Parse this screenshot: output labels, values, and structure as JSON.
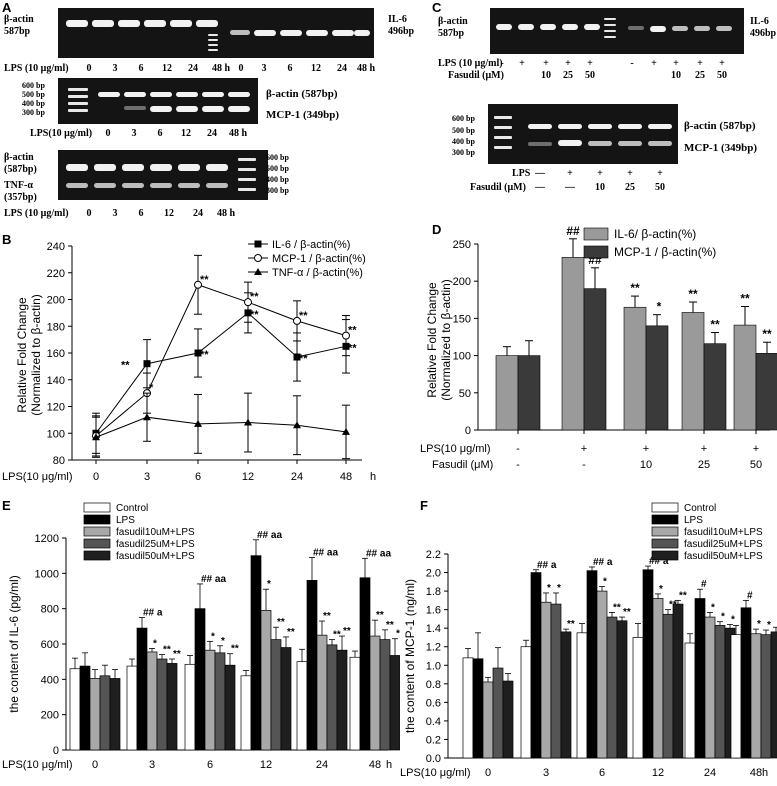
{
  "panel_labels": {
    "A": "A",
    "B": "B",
    "C": "C",
    "D": "D",
    "E": "E",
    "F": "F"
  },
  "gels": {
    "a1": {
      "left_label": "β-actin\n587bp",
      "right_label": "IL-6\n496bp",
      "row_prefix": "LPS (10 μg/ml)",
      "lanes": [
        "0",
        "3",
        "6",
        "12",
        "24",
        "48 h",
        "0",
        "3",
        "6",
        "12",
        "24",
        "48 h"
      ]
    },
    "a2": {
      "ladder": [
        "600 bp",
        "500 bp",
        "400 bp",
        "300 bp"
      ],
      "right_top": "β-actin (587bp)",
      "right_bottom": "MCP-1 (349bp)",
      "row_prefix": "LPS(10 μg/ml)",
      "lanes": [
        "0",
        "3",
        "6",
        "12",
        "24",
        "48 h"
      ]
    },
    "a3": {
      "left_top": "β-actin\n(587bp)",
      "left_bottom": "TNF-α\n(357bp)",
      "ladder": [
        "600 bp",
        "500 bp",
        "400 bp",
        "300 bp"
      ],
      "row_prefix": "LPS (10 μg/ml)",
      "lanes": [
        "0",
        "3",
        "6",
        "12",
        "24",
        "48 h"
      ]
    },
    "c1": {
      "left_label": "β-actin\n587bp",
      "right_label": "IL-6\n496bp",
      "row1_prefix": "LPS (10 μg/ml)",
      "row1": [
        "-",
        "+",
        "+",
        "+",
        "+",
        "",
        "-",
        "+",
        "+",
        "+",
        "+"
      ],
      "row2_prefix": "Fasudil (μM)",
      "row2": [
        "",
        "",
        "10",
        "25",
        "50",
        "",
        "",
        "",
        "10",
        "25",
        "50"
      ]
    },
    "c2": {
      "ladder": [
        "600 bp",
        "500 bp",
        "400 bp",
        "300 bp"
      ],
      "right_top": "β-actin (587bp)",
      "right_bottom": "MCP-1 (349bp)",
      "row1_prefix": "LPS",
      "row1": [
        "—",
        "+",
        "+",
        "+",
        "+"
      ],
      "row2_prefix": "Fasudil (μM)",
      "row2": [
        "—",
        "—",
        "10",
        "25",
        "50"
      ]
    }
  },
  "chart_data": [
    {
      "id": "B",
      "type": "line",
      "xlabel": "LPS(10 μg/ml)",
      "x_unit": "h",
      "categories": [
        "0",
        "3",
        "6",
        "12",
        "24",
        "48"
      ],
      "ylabel": "Relative Fold Change\n(Normalized to β-actin)",
      "ylim": [
        80,
        240
      ],
      "yticks": [
        80,
        100,
        120,
        140,
        160,
        180,
        200,
        220,
        240
      ],
      "legend_position": "top-right",
      "series": [
        {
          "name": "IL-6 / β-actin(%)",
          "marker": "filled-square",
          "values": [
            100,
            152,
            160,
            190,
            157,
            165
          ],
          "errors": [
            15,
            18,
            18,
            15,
            18,
            20
          ],
          "sig": [
            "",
            "**",
            "**",
            "**",
            "**",
            "**"
          ]
        },
        {
          "name": "MCP-1 / β-actin(%)",
          "marker": "open-circle",
          "values": [
            98,
            130,
            211,
            198,
            184,
            173
          ],
          "errors": [
            15,
            15,
            22,
            15,
            15,
            15
          ],
          "sig": [
            "",
            "*",
            "**",
            "**",
            "**",
            "**"
          ]
        },
        {
          "name": "TNF-α / β-actin(%)",
          "marker": "filled-triangle",
          "values": [
            97,
            112,
            107,
            108,
            106,
            101
          ],
          "errors": [
            15,
            18,
            22,
            22,
            22,
            20
          ],
          "sig": [
            "",
            "",
            "",
            "",
            "",
            ""
          ]
        }
      ]
    },
    {
      "id": "D",
      "type": "bar",
      "ylabel": "Relative Fold Change\n(Normalized to β-actin)",
      "ylim": [
        0,
        250
      ],
      "yticks": [
        0,
        50,
        100,
        150,
        200,
        250
      ],
      "legend_position": "top-right",
      "rows": [
        {
          "label": "LPS(10 μg/ml)",
          "values": [
            "-",
            "+",
            "+",
            "+",
            "+"
          ]
        },
        {
          "label": "Fasudil (μM)",
          "values": [
            "-",
            "-",
            "10",
            "25",
            "50"
          ]
        }
      ],
      "series": [
        {
          "name": "IL-6/ β-actin(%)",
          "color": "#9a9a9a",
          "values": [
            100,
            232,
            165,
            158,
            141
          ],
          "errors": [
            12,
            25,
            15,
            14,
            25
          ],
          "sig": [
            "",
            "##",
            "**",
            "**",
            "**"
          ]
        },
        {
          "name": "MCP-1 / β-actin(%)",
          "color": "#3a3a3a",
          "values": [
            100,
            190,
            140,
            116,
            103
          ],
          "errors": [
            20,
            28,
            15,
            15,
            15
          ],
          "sig": [
            "",
            "##",
            "*",
            "**",
            "**"
          ]
        }
      ]
    },
    {
      "id": "E",
      "type": "bar",
      "ylabel": "the content of IL-6 (pg/ml)",
      "xlabel": "LPS(10 μg/ml)",
      "x_unit": "h",
      "categories": [
        "0",
        "3",
        "6",
        "12",
        "24",
        "48"
      ],
      "ylim": [
        0,
        1200
      ],
      "yticks": [
        0,
        200,
        400,
        600,
        800,
        1000,
        1200
      ],
      "legend_position": "top-left",
      "series": [
        {
          "name": "Control",
          "color": "#ffffff",
          "values": [
            460,
            475,
            485,
            420,
            500,
            525
          ],
          "errors": [
            60,
            40,
            50,
            30,
            70,
            35
          ],
          "sig": [
            "",
            "",
            "",
            "",
            "",
            ""
          ]
        },
        {
          "name": "LPS",
          "color": "#000000",
          "values": [
            475,
            690,
            800,
            1100,
            960,
            975
          ],
          "errors": [
            75,
            60,
            140,
            90,
            130,
            110
          ],
          "sig": [
            "",
            "## a",
            "## aa",
            "## aa",
            "## aa",
            "## aa"
          ]
        },
        {
          "name": "fasudil10uM+LPS",
          "color": "#a8a8a8",
          "values": [
            405,
            555,
            565,
            790,
            650,
            645
          ],
          "errors": [
            50,
            20,
            50,
            120,
            80,
            90
          ],
          "sig": [
            "",
            "*",
            "*",
            "*",
            "**",
            "**"
          ]
        },
        {
          "name": "fasudil25uM+LPS",
          "color": "#555555",
          "values": [
            420,
            515,
            550,
            625,
            595,
            625
          ],
          "errors": [
            60,
            25,
            40,
            70,
            30,
            55
          ],
          "sig": [
            "",
            "**",
            "*",
            "**",
            "**",
            "**"
          ]
        },
        {
          "name": "fasudil50uM+LPS",
          "color": "#1f1f1f",
          "values": [
            405,
            490,
            480,
            580,
            565,
            535
          ],
          "errors": [
            50,
            25,
            65,
            60,
            80,
            95
          ],
          "sig": [
            "",
            "**",
            "**",
            "**",
            "**",
            "**"
          ]
        }
      ]
    },
    {
      "id": "F",
      "type": "bar",
      "ylabel": "the content of MCP-1 (ng/ml)",
      "xlabel": "LPS(10 μg/ml)",
      "x_unit": "h",
      "categories": [
        "0",
        "3",
        "6",
        "12",
        "24",
        "48"
      ],
      "ylim": [
        0,
        2.2
      ],
      "yticks": [
        0,
        0.2,
        0.4,
        0.6,
        0.8,
        1.0,
        1.2,
        1.4,
        1.6,
        1.8,
        2.0,
        2.2
      ],
      "legend_position": "top-right",
      "series": [
        {
          "name": "Control",
          "color": "#ffffff",
          "values": [
            1.08,
            1.2,
            1.35,
            1.3,
            1.24,
            1.33
          ],
          "errors": [
            0.1,
            0.07,
            0.1,
            0.15,
            0.1,
            0.1
          ],
          "sig": [
            "",
            "",
            "",
            "",
            "",
            ""
          ]
        },
        {
          "name": "LPS",
          "color": "#000000",
          "values": [
            1.07,
            2.0,
            2.02,
            2.03,
            1.72,
            1.62
          ],
          "errors": [
            0.28,
            0.03,
            0.04,
            0.04,
            0.1,
            0.08
          ],
          "sig": [
            "",
            "## a",
            "## a",
            "## a",
            "#",
            "#"
          ]
        },
        {
          "name": "fasudil10uM+LPS",
          "color": "#a8a8a8",
          "values": [
            0.82,
            1.68,
            1.8,
            1.72,
            1.52,
            1.34
          ],
          "errors": [
            0.05,
            0.1,
            0.05,
            0.05,
            0.05,
            0.05
          ],
          "sig": [
            "",
            "*",
            "*",
            "*",
            "*",
            "*"
          ]
        },
        {
          "name": "fasudil25uM+LPS",
          "color": "#555555",
          "values": [
            0.97,
            1.66,
            1.52,
            1.55,
            1.43,
            1.33
          ],
          "errors": [
            0.22,
            0.12,
            0.05,
            0.05,
            0.04,
            0.05
          ],
          "sig": [
            "",
            "*",
            "**",
            "**",
            "*",
            "*"
          ]
        },
        {
          "name": "fasudil50uM+LPS",
          "color": "#1f1f1f",
          "values": [
            0.83,
            1.36,
            1.48,
            1.66,
            1.4,
            1.36
          ],
          "errors": [
            0.08,
            0.03,
            0.04,
            0.04,
            0.04,
            0.05
          ],
          "sig": [
            "",
            "**",
            "**",
            "**",
            "*",
            "*"
          ]
        }
      ]
    }
  ]
}
